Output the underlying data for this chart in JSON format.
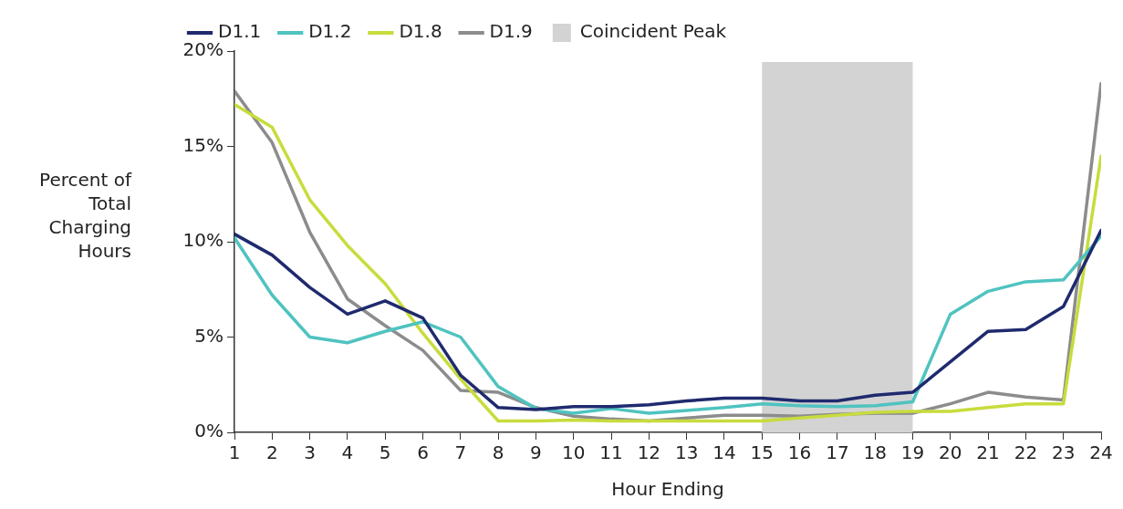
{
  "chart_data": {
    "type": "line",
    "xlabel": "Hour Ending",
    "ylabel": "Percent of Total Charging Hours",
    "x": [
      1,
      2,
      3,
      4,
      5,
      6,
      7,
      8,
      9,
      10,
      11,
      12,
      13,
      14,
      15,
      16,
      17,
      18,
      19,
      20,
      21,
      22,
      23,
      24
    ],
    "xlim": [
      1,
      24
    ],
    "xticks": [
      1,
      2,
      3,
      4,
      5,
      6,
      7,
      8,
      9,
      10,
      11,
      12,
      13,
      14,
      15,
      16,
      17,
      18,
      19,
      20,
      21,
      22,
      23,
      24
    ],
    "ylim": [
      0,
      20
    ],
    "yticks": [
      {
        "value": 0,
        "label": "0%"
      },
      {
        "value": 5,
        "label": "5%"
      },
      {
        "value": 10,
        "label": "10%"
      },
      {
        "value": 15,
        "label": "15%"
      },
      {
        "value": 20,
        "label": "20%"
      }
    ],
    "series": [
      {
        "name": "D1.1",
        "color": "#1f2a6e",
        "values": [
          10.4,
          9.3,
          7.6,
          6.2,
          6.9,
          6.0,
          3.0,
          1.3,
          1.2,
          1.35,
          1.35,
          1.45,
          1.65,
          1.8,
          1.8,
          1.65,
          1.65,
          1.95,
          2.1,
          3.7,
          5.3,
          5.4,
          6.6,
          10.6
        ]
      },
      {
        "name": "D1.2",
        "color": "#4fc3c0",
        "values": [
          10.2,
          7.2,
          5.0,
          4.7,
          5.3,
          5.8,
          5.0,
          2.4,
          1.25,
          1.0,
          1.25,
          1.0,
          1.15,
          1.3,
          1.5,
          1.4,
          1.35,
          1.4,
          1.6,
          6.2,
          7.4,
          7.9,
          8.0,
          10.3
        ]
      },
      {
        "name": "D1.8",
        "color": "#c8dc3c",
        "values": [
          17.2,
          16.0,
          12.2,
          9.8,
          7.8,
          5.2,
          2.8,
          0.6,
          0.6,
          0.65,
          0.6,
          0.6,
          0.6,
          0.6,
          0.6,
          0.75,
          0.9,
          1.05,
          1.1,
          1.1,
          1.3,
          1.5,
          1.5,
          14.5
        ]
      },
      {
        "name": "D1.9",
        "color": "#8c8c8c",
        "values": [
          17.9,
          15.2,
          10.5,
          7.0,
          5.6,
          4.3,
          2.2,
          2.1,
          1.3,
          0.85,
          0.7,
          0.6,
          0.75,
          0.9,
          0.9,
          0.85,
          0.95,
          1.0,
          1.0,
          1.5,
          2.1,
          1.85,
          1.7,
          18.3
        ]
      }
    ],
    "bands": [
      {
        "axis": "x",
        "from": 15,
        "to": 19,
        "label": "Coincident Peak",
        "color": "#d3d3d3"
      }
    ],
    "grid": false,
    "legend": "top left",
    "marker": "none",
    "line_style": "solid"
  }
}
